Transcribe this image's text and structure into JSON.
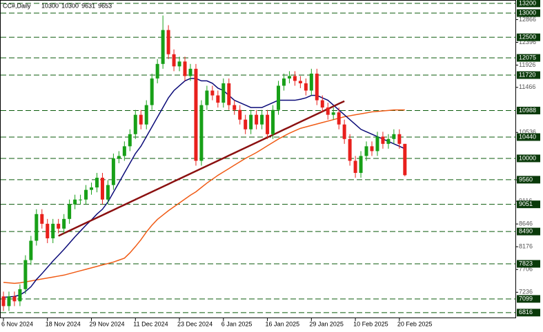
{
  "chart_data": {
    "type": "candlestick",
    "title": "CC#,Daily",
    "categories": [
      "6 Nov 2024",
      null,
      null,
      null,
      null,
      null,
      null,
      null,
      "18 Nov 2024",
      null,
      null,
      null,
      null,
      null,
      null,
      null,
      "29 Nov 2024",
      null,
      null,
      null,
      null,
      null,
      null,
      null,
      "11 Dec 2024",
      null,
      null,
      null,
      null,
      null,
      null,
      null,
      "23 Dec 2024",
      null,
      null,
      null,
      null,
      null,
      null,
      null,
      "6 Jan 2025",
      null,
      null,
      null,
      null,
      null,
      null,
      null,
      "16 Jan 2025",
      null,
      null,
      null,
      null,
      null,
      null,
      null,
      "29 Jan 2025",
      null,
      null,
      null,
      null,
      null,
      null,
      null,
      "10 Feb 2025",
      null,
      null,
      null,
      null,
      null,
      null,
      null,
      "20 Feb 2025",
      null
    ],
    "open": [
      7150,
      6950,
      7150,
      7050,
      7300,
      7900,
      8300,
      8850,
      8650,
      8350,
      8650,
      8550,
      8750,
      9050,
      9150,
      9150,
      9350,
      9400,
      9600,
      9150,
      9450,
      10000,
      10050,
      10250,
      10500,
      10900,
      10700,
      11100,
      11650,
      11950,
      12650,
      12150,
      11900,
      12000,
      11700,
      11850,
      9950,
      11100,
      11400,
      11300,
      11150,
      11550,
      11100,
      11000,
      10800,
      10600,
      10900,
      10700,
      10900,
      10500,
      11000,
      11500,
      11650,
      11700,
      11600,
      11550,
      11400,
      11750,
      11200,
      11050,
      10900,
      10950,
      10700,
      10400,
      9950,
      9700,
      10050,
      10250,
      10150,
      10450,
      10300,
      10400,
      10500,
      10300
    ],
    "high": [
      7250,
      7250,
      7250,
      7400,
      8000,
      8400,
      8950,
      8950,
      8750,
      8750,
      8750,
      8850,
      9150,
      9250,
      9250,
      9450,
      9500,
      9700,
      9700,
      9550,
      10100,
      10150,
      10350,
      10600,
      11000,
      11000,
      11200,
      11750,
      12050,
      12950,
      12750,
      12250,
      12100,
      12100,
      11950,
      11950,
      11200,
      11500,
      11500,
      11400,
      11650,
      11650,
      11200,
      11100,
      10900,
      11000,
      11000,
      11000,
      11000,
      11100,
      11600,
      11750,
      11800,
      11800,
      11700,
      11650,
      11850,
      11850,
      11300,
      11150,
      11050,
      11050,
      10800,
      10500,
      10050,
      10150,
      10350,
      10350,
      10550,
      10550,
      10500,
      10600,
      10600,
      10300
    ],
    "low": [
      6850,
      6850,
      6950,
      6950,
      7200,
      7800,
      8200,
      8550,
      8250,
      8250,
      8450,
      8450,
      8650,
      8950,
      9050,
      9050,
      9250,
      9300,
      9050,
      9050,
      9350,
      9900,
      9950,
      10150,
      10400,
      10600,
      10600,
      11000,
      11550,
      11850,
      12050,
      11800,
      11800,
      11600,
      11600,
      9850,
      9850,
      11000,
      11200,
      11050,
      11050,
      11000,
      10900,
      10700,
      10500,
      10500,
      10600,
      10600,
      10400,
      10400,
      10900,
      11400,
      11550,
      11500,
      11450,
      11300,
      11300,
      11100,
      10950,
      10800,
      10800,
      10600,
      10300,
      9850,
      9600,
      9600,
      9950,
      10050,
      10050,
      10200,
      10200,
      10300,
      10200,
      9631
    ],
    "close": [
      6950,
      7150,
      7050,
      7300,
      7900,
      8300,
      8850,
      8650,
      8350,
      8650,
      8550,
      8750,
      9050,
      9150,
      9150,
      9350,
      9400,
      9600,
      9150,
      9450,
      10000,
      10050,
      10250,
      10500,
      10900,
      10700,
      11100,
      11650,
      11950,
      12650,
      12150,
      11900,
      12000,
      11700,
      11850,
      9950,
      11100,
      11400,
      11300,
      11150,
      11550,
      11100,
      11000,
      10800,
      10600,
      10900,
      10700,
      10900,
      10500,
      11000,
      11500,
      11650,
      11700,
      11600,
      11550,
      11400,
      11750,
      11200,
      11050,
      10900,
      10950,
      10700,
      10400,
      9950,
      9700,
      10050,
      10250,
      10150,
      10450,
      10300,
      10400,
      10500,
      10300,
      9653
    ],
    "up_color": "#18a018",
    "down_color": "#e8201c",
    "lines": [
      {
        "color": "#f05a14",
        "values": [
          7440,
          7430,
          7420,
          7430,
          7450,
          7470,
          7490,
          7510,
          7530,
          7550,
          7570,
          7590,
          7620,
          7650,
          7680,
          7710,
          7740,
          7770,
          7800,
          7830,
          7860,
          7900,
          7940,
          8050,
          8180,
          8320,
          8480,
          8620,
          8740,
          8830,
          8920,
          9000,
          9080,
          9160,
          9240,
          9310,
          9400,
          9490,
          9570,
          9650,
          9720,
          9790,
          9860,
          9930,
          10000,
          10060,
          10120,
          10190,
          10260,
          10330,
          10400,
          10460,
          10520,
          10570,
          10620,
          10650,
          10680,
          10710,
          10740,
          10770,
          10800,
          10830,
          10860,
          10880,
          10900,
          10920,
          10940,
          10960,
          10970,
          10980,
          10990,
          11000,
          11000,
          11000
        ]
      },
      {
        "color": "#0a0a78",
        "values": [
          7130,
          7140,
          7150,
          7180,
          7250,
          7350,
          7500,
          7620,
          7750,
          7880,
          8000,
          8120,
          8250,
          8380,
          8500,
          8620,
          8730,
          8850,
          8950,
          9100,
          9300,
          9500,
          9700,
          9900,
          10100,
          10250,
          10450,
          10650,
          10850,
          11050,
          11250,
          11400,
          11500,
          11600,
          11650,
          11650,
          11600,
          11600,
          11550,
          11450,
          11400,
          11300,
          11200,
          11150,
          11100,
          11050,
          11050,
          11050,
          11100,
          11150,
          11200,
          11200,
          11200,
          11200,
          11220,
          11250,
          11300,
          11300,
          11250,
          11200,
          11100,
          11000,
          10900,
          10800,
          10700,
          10600,
          10550,
          10500,
          10450,
          10400,
          10350,
          10300,
          10250,
          10200
        ]
      },
      {
        "color": "#8b1010",
        "values": [
          null,
          null,
          null,
          null,
          null,
          null,
          null,
          null,
          null,
          null,
          8400,
          8454,
          8507,
          8561,
          8614,
          8668,
          8721,
          8775,
          8828,
          8882,
          8935,
          8989,
          9042,
          9096,
          9149,
          9203,
          9256,
          9310,
          9363,
          9417,
          9470,
          9524,
          9577,
          9631,
          9684,
          9738,
          9791,
          9845,
          9898,
          9952,
          10005,
          10059,
          10112,
          10166,
          10219,
          10273,
          10326,
          10380,
          10433,
          10487,
          10540,
          10594,
          10647,
          10701,
          10754,
          10808,
          10861,
          10915,
          10968,
          11022,
          11075,
          11129,
          11182,
          null,
          null,
          null,
          null,
          null,
          null,
          null,
          null,
          null,
          null,
          null
        ]
      }
    ],
    "levels": [
      13200,
      13000,
      12500,
      12075,
      11720,
      10988,
      10440,
      10000,
      9560,
      9051,
      8490,
      7823,
      7099,
      6816
    ],
    "level_color": "#0a5a0a",
    "ylim": [
      6700,
      13270
    ],
    "yticks": [
      12866,
      12396,
      11926,
      11466,
      10536,
      9557,
      9116,
      8646,
      8176,
      7706,
      7236
    ]
  }
}
